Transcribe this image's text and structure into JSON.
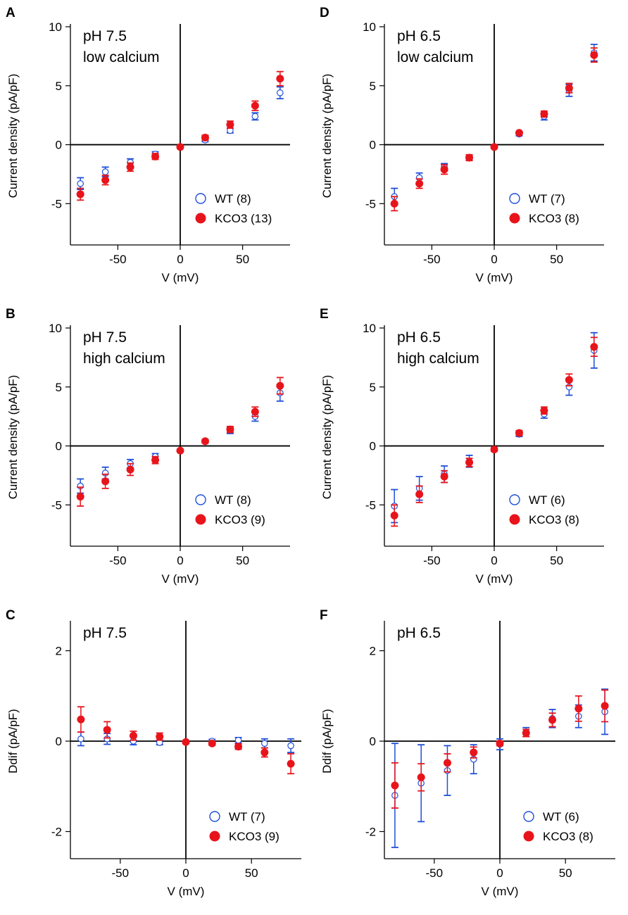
{
  "colors": {
    "wt": "#1f4fd8",
    "kco3": "#e8141b",
    "axis": "#000000"
  },
  "chart_data": [
    {
      "type": "scatter",
      "panel": "A",
      "annotation": [
        "pH 7.5",
        "low calcium"
      ],
      "xlabel": "V (mV)",
      "ylabel": "Current density (pA/pF)",
      "xlim": [
        -88,
        88
      ],
      "ylim": [
        -8.5,
        10
      ],
      "xticks": [
        -50,
        0,
        50
      ],
      "xtick_labels": [
        "-50",
        "0",
        "50"
      ],
      "yticks": [
        -5,
        0,
        5,
        10
      ],
      "ytick_labels": [
        "-5",
        "0",
        "5",
        "10"
      ],
      "x": [
        -80,
        -60,
        -40,
        -20,
        0,
        20,
        40,
        60,
        80
      ],
      "series": [
        {
          "name": "WT (8)",
          "marker": "open-circle",
          "values": [
            -3.3,
            -2.3,
            -1.5,
            -0.8,
            -0.2,
            0.4,
            1.2,
            2.4,
            4.4
          ],
          "err": [
            0.5,
            0.4,
            0.3,
            0.2,
            0.1,
            0.15,
            0.2,
            0.3,
            0.5
          ]
        },
        {
          "name": "KCO3 (13)",
          "marker": "filled-circle",
          "values": [
            -4.2,
            -3.0,
            -1.9,
            -1.0,
            -0.2,
            0.6,
            1.7,
            3.3,
            5.6
          ],
          "err": [
            0.5,
            0.4,
            0.35,
            0.25,
            0.1,
            0.2,
            0.3,
            0.4,
            0.6
          ]
        }
      ]
    },
    {
      "type": "scatter",
      "panel": "B",
      "annotation": [
        "pH 7.5",
        "high calcium"
      ],
      "xlabel": "V (mV)",
      "ylabel": "Current density (pA/pF)",
      "xlim": [
        -88,
        88
      ],
      "ylim": [
        -8.5,
        10
      ],
      "xticks": [
        -50,
        0,
        50
      ],
      "xtick_labels": [
        "-50",
        "0",
        "50"
      ],
      "yticks": [
        -5,
        0,
        5,
        10
      ],
      "ytick_labels": [
        "-5",
        "0",
        "5",
        "10"
      ],
      "x": [
        -80,
        -60,
        -40,
        -20,
        0,
        20,
        40,
        60,
        80
      ],
      "series": [
        {
          "name": "WT (8)",
          "marker": "open-circle",
          "values": [
            -3.4,
            -2.3,
            -1.5,
            -0.9,
            -0.4,
            0.4,
            1.3,
            2.5,
            4.5
          ],
          "err": [
            0.6,
            0.5,
            0.35,
            0.25,
            0.1,
            0.15,
            0.25,
            0.4,
            0.7
          ]
        },
        {
          "name": "KCO3 (9)",
          "marker": "filled-circle",
          "values": [
            -4.3,
            -3.0,
            -2.0,
            -1.2,
            -0.4,
            0.4,
            1.4,
            2.9,
            5.1
          ],
          "err": [
            0.8,
            0.6,
            0.5,
            0.3,
            0.1,
            0.15,
            0.25,
            0.4,
            0.7
          ]
        }
      ]
    },
    {
      "type": "scatter",
      "panel": "C",
      "annotation": [
        "pH 7.5"
      ],
      "xlabel": "V (mV)",
      "ylabel": "Ddif (pA/pF)",
      "xlim": [
        -88,
        88
      ],
      "ylim": [
        -2.6,
        2.6
      ],
      "xticks": [
        -50,
        0,
        50
      ],
      "xtick_labels": [
        "-50",
        "0",
        "50"
      ],
      "yticks": [
        -2,
        0,
        2
      ],
      "ytick_labels": [
        "-2",
        "0",
        "2"
      ],
      "x": [
        -80,
        -60,
        -40,
        -20,
        0,
        20,
        40,
        60,
        80
      ],
      "series": [
        {
          "name": "WT (7)",
          "marker": "open-circle",
          "values": [
            0.05,
            0.05,
            0.0,
            -0.03,
            -0.02,
            0.0,
            0.02,
            -0.05,
            -0.1
          ],
          "err": [
            0.15,
            0.12,
            0.08,
            0.05,
            0.03,
            0.04,
            0.06,
            0.1,
            0.15
          ]
        },
        {
          "name": "KCO3 (9)",
          "marker": "filled-circle",
          "values": [
            0.48,
            0.25,
            0.12,
            0.1,
            -0.02,
            -0.05,
            -0.12,
            -0.25,
            -0.5
          ],
          "err": [
            0.28,
            0.18,
            0.1,
            0.08,
            0.03,
            0.04,
            0.06,
            0.1,
            0.22
          ]
        }
      ]
    },
    {
      "type": "scatter",
      "panel": "D",
      "annotation": [
        "pH 6.5",
        "low calcium"
      ],
      "xlabel": "V (mV)",
      "ylabel": "Current density (pA/pF)",
      "xlim": [
        -88,
        88
      ],
      "ylim": [
        -8.5,
        10
      ],
      "xticks": [
        -50,
        0,
        50
      ],
      "xtick_labels": [
        "-50",
        "0",
        "50"
      ],
      "yticks": [
        -5,
        0,
        5,
        10
      ],
      "ytick_labels": [
        "-5",
        "0",
        "5",
        "10"
      ],
      "x": [
        -80,
        -60,
        -40,
        -20,
        0,
        20,
        40,
        60,
        80
      ],
      "series": [
        {
          "name": "WT (7)",
          "marker": "open-circle",
          "values": [
            -4.4,
            -2.8,
            -1.9,
            -1.1,
            -0.2,
            0.9,
            2.4,
            4.6,
            7.8
          ],
          "err": [
            0.7,
            0.4,
            0.3,
            0.2,
            0.1,
            0.15,
            0.3,
            0.5,
            0.7
          ]
        },
        {
          "name": "KCO3 (8)",
          "marker": "filled-circle",
          "values": [
            -5.0,
            -3.3,
            -2.1,
            -1.1,
            -0.2,
            1.0,
            2.6,
            4.8,
            7.6
          ],
          "err": [
            0.6,
            0.4,
            0.4,
            0.25,
            0.1,
            0.1,
            0.25,
            0.4,
            0.6
          ]
        }
      ]
    },
    {
      "type": "scatter",
      "panel": "E",
      "annotation": [
        "pH 6.5",
        "high calcium"
      ],
      "xlabel": "V (mV)",
      "ylabel": "Current density (pA/pF)",
      "xlim": [
        -88,
        88
      ],
      "ylim": [
        -8.5,
        10
      ],
      "xticks": [
        -50,
        0,
        50
      ],
      "xtick_labels": [
        "-50",
        "0",
        "50"
      ],
      "yticks": [
        -5,
        0,
        5,
        10
      ],
      "ytick_labels": [
        "-5",
        "0",
        "5",
        "10"
      ],
      "x": [
        -80,
        -60,
        -40,
        -20,
        0,
        20,
        40,
        60,
        80
      ],
      "series": [
        {
          "name": "WT (6)",
          "marker": "open-circle",
          "values": [
            -5.1,
            -3.6,
            -2.4,
            -1.3,
            -0.3,
            1.0,
            2.7,
            5.0,
            8.1
          ],
          "err": [
            1.4,
            1.0,
            0.7,
            0.5,
            0.15,
            0.2,
            0.35,
            0.7,
            1.5
          ]
        },
        {
          "name": "KCO3 (8)",
          "marker": "filled-circle",
          "values": [
            -5.9,
            -4.1,
            -2.6,
            -1.4,
            -0.3,
            1.1,
            3.0,
            5.6,
            8.4
          ],
          "err": [
            0.9,
            0.7,
            0.5,
            0.35,
            0.1,
            0.2,
            0.3,
            0.5,
            0.8
          ]
        }
      ]
    },
    {
      "type": "scatter",
      "panel": "F",
      "annotation": [
        "pH 6.5"
      ],
      "xlabel": "V (mV)",
      "ylabel": "Ddif (pA/pF)",
      "xlim": [
        -88,
        88
      ],
      "ylim": [
        -2.6,
        2.6
      ],
      "xticks": [
        -50,
        0,
        50
      ],
      "xtick_labels": [
        "-50",
        "0",
        "50"
      ],
      "yticks": [
        -2,
        0,
        2
      ],
      "ytick_labels": [
        "-2",
        "0",
        "2"
      ],
      "x": [
        -80,
        -60,
        -40,
        -20,
        0,
        20,
        40,
        60,
        80
      ],
      "series": [
        {
          "name": "WT (6)",
          "marker": "open-circle",
          "values": [
            -1.2,
            -0.93,
            -0.65,
            -0.4,
            -0.07,
            0.2,
            0.5,
            0.55,
            0.65
          ],
          "err": [
            1.15,
            0.85,
            0.55,
            0.32,
            0.12,
            0.1,
            0.2,
            0.25,
            0.5
          ]
        },
        {
          "name": "KCO3 (8)",
          "marker": "filled-circle",
          "values": [
            -0.98,
            -0.8,
            -0.48,
            -0.25,
            -0.05,
            0.18,
            0.47,
            0.72,
            0.78
          ],
          "err": [
            0.5,
            0.3,
            0.2,
            0.12,
            0.05,
            0.08,
            0.15,
            0.28,
            0.35
          ]
        }
      ]
    }
  ]
}
